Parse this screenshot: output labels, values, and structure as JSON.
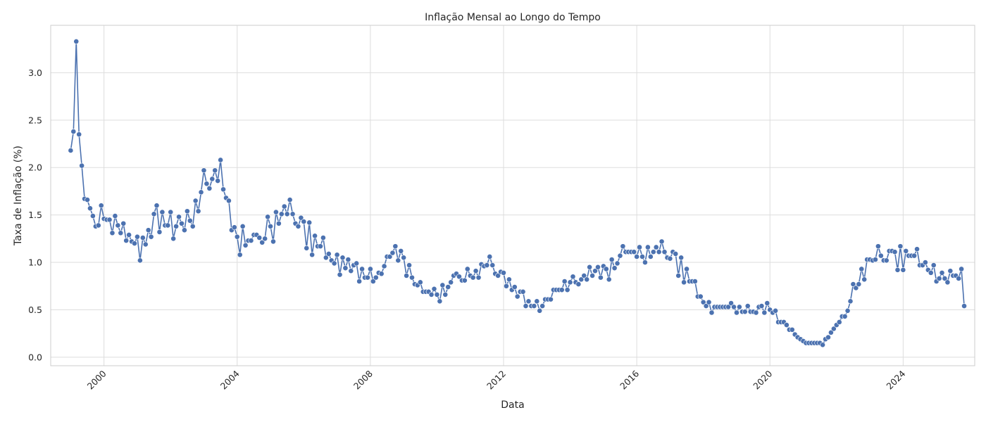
{
  "chart_data": {
    "type": "line",
    "title": "Inflação Mensal ao Longo do Tempo",
    "xlabel": "Data",
    "ylabel": "Taxa de Inflação (%)",
    "x_domain": [
      1998.4,
      2026.15
    ],
    "ylim": [
      -0.09,
      3.5
    ],
    "x_ticks": [
      {
        "value": 2000,
        "label": "2000"
      },
      {
        "value": 2004,
        "label": "2004"
      },
      {
        "value": 2008,
        "label": "2008"
      },
      {
        "value": 2012,
        "label": "2012"
      },
      {
        "value": 2016,
        "label": "2016"
      },
      {
        "value": 2020,
        "label": "2020"
      },
      {
        "value": 2024,
        "label": "2024"
      }
    ],
    "y_ticks": [
      {
        "value": 0.0,
        "label": "0.0"
      },
      {
        "value": 0.5,
        "label": "0.5"
      },
      {
        "value": 1.0,
        "label": "1.0"
      },
      {
        "value": 1.5,
        "label": "1.5"
      },
      {
        "value": 2.0,
        "label": "2.0"
      },
      {
        "value": 2.5,
        "label": "2.5"
      },
      {
        "value": 3.0,
        "label": "3.0"
      }
    ],
    "grid": true,
    "legend": "none",
    "colors": {
      "series": "#4c72b0",
      "grid": "#dddddd",
      "spine": "#cccccc",
      "text": "#262626"
    },
    "series": [
      {
        "name": "Inflação Mensal",
        "start_year": 1999,
        "start_month": 1,
        "values": [
          2.18,
          2.38,
          3.33,
          2.35,
          2.02,
          1.67,
          1.66,
          1.57,
          1.49,
          1.38,
          1.39,
          1.6,
          1.46,
          1.45,
          1.45,
          1.31,
          1.49,
          1.39,
          1.31,
          1.41,
          1.23,
          1.29,
          1.22,
          1.2,
          1.27,
          1.02,
          1.26,
          1.19,
          1.34,
          1.27,
          1.51,
          1.6,
          1.32,
          1.53,
          1.39,
          1.39,
          1.53,
          1.25,
          1.38,
          1.48,
          1.41,
          1.34,
          1.54,
          1.44,
          1.38,
          1.65,
          1.54,
          1.74,
          1.97,
          1.83,
          1.78,
          1.88,
          1.97,
          1.86,
          2.08,
          1.77,
          1.68,
          1.65,
          1.34,
          1.37,
          1.27,
          1.08,
          1.38,
          1.18,
          1.23,
          1.23,
          1.29,
          1.29,
          1.26,
          1.21,
          1.25,
          1.48,
          1.38,
          1.22,
          1.53,
          1.41,
          1.51,
          1.59,
          1.51,
          1.66,
          1.51,
          1.41,
          1.38,
          1.47,
          1.43,
          1.15,
          1.42,
          1.08,
          1.28,
          1.17,
          1.17,
          1.26,
          1.05,
          1.09,
          1.02,
          0.99,
          1.08,
          0.87,
          1.05,
          0.94,
          1.03,
          0.91,
          0.97,
          0.99,
          0.8,
          0.93,
          0.84,
          0.84,
          0.93,
          0.8,
          0.84,
          0.89,
          0.88,
          0.96,
          1.06,
          1.06,
          1.1,
          1.17,
          1.02,
          1.12,
          1.05,
          0.86,
          0.97,
          0.84,
          0.77,
          0.76,
          0.79,
          0.69,
          0.69,
          0.69,
          0.66,
          0.72,
          0.66,
          0.59,
          0.76,
          0.66,
          0.74,
          0.79,
          0.86,
          0.88,
          0.85,
          0.81,
          0.81,
          0.93,
          0.86,
          0.84,
          0.91,
          0.84,
          0.98,
          0.96,
          0.97,
          1.06,
          0.97,
          0.88,
          0.86,
          0.9,
          0.89,
          0.75,
          0.82,
          0.71,
          0.74,
          0.64,
          0.69,
          0.69,
          0.54,
          0.59,
          0.54,
          0.54,
          0.59,
          0.49,
          0.54,
          0.61,
          0.61,
          0.61,
          0.71,
          0.71,
          0.71,
          0.71,
          0.8,
          0.71,
          0.79,
          0.85,
          0.79,
          0.77,
          0.82,
          0.86,
          0.82,
          0.95,
          0.86,
          0.91,
          0.95,
          0.84,
          0.96,
          0.93,
          0.82,
          1.03,
          0.94,
          0.99,
          1.07,
          1.17,
          1.11,
          1.11,
          1.11,
          1.11,
          1.06,
          1.16,
          1.06,
          1.0,
          1.16,
          1.06,
          1.11,
          1.16,
          1.11,
          1.22,
          1.11,
          1.05,
          1.04,
          1.11,
          1.09,
          0.86,
          1.05,
          0.79,
          0.93,
          0.8,
          0.8,
          0.8,
          0.64,
          0.64,
          0.58,
          0.54,
          0.58,
          0.47,
          0.53,
          0.53,
          0.53,
          0.53,
          0.53,
          0.53,
          0.57,
          0.53,
          0.47,
          0.53,
          0.48,
          0.48,
          0.54,
          0.48,
          0.48,
          0.47,
          0.53,
          0.54,
          0.47,
          0.57,
          0.5,
          0.47,
          0.49,
          0.37,
          0.37,
          0.37,
          0.34,
          0.29,
          0.29,
          0.24,
          0.21,
          0.19,
          0.17,
          0.15,
          0.15,
          0.15,
          0.15,
          0.15,
          0.15,
          0.13,
          0.19,
          0.21,
          0.26,
          0.3,
          0.34,
          0.37,
          0.43,
          0.43,
          0.49,
          0.59,
          0.77,
          0.73,
          0.77,
          0.93,
          0.82,
          1.03,
          1.03,
          1.02,
          1.03,
          1.17,
          1.07,
          1.02,
          1.02,
          1.12,
          1.12,
          1.11,
          0.92,
          1.17,
          0.92,
          1.12,
          1.07,
          1.07,
          1.07,
          1.14,
          0.97,
          0.97,
          1.0,
          0.92,
          0.89,
          0.97,
          0.8,
          0.83,
          0.89,
          0.83,
          0.79,
          0.91,
          0.86,
          0.86,
          0.83,
          0.93,
          0.54
        ]
      }
    ]
  }
}
